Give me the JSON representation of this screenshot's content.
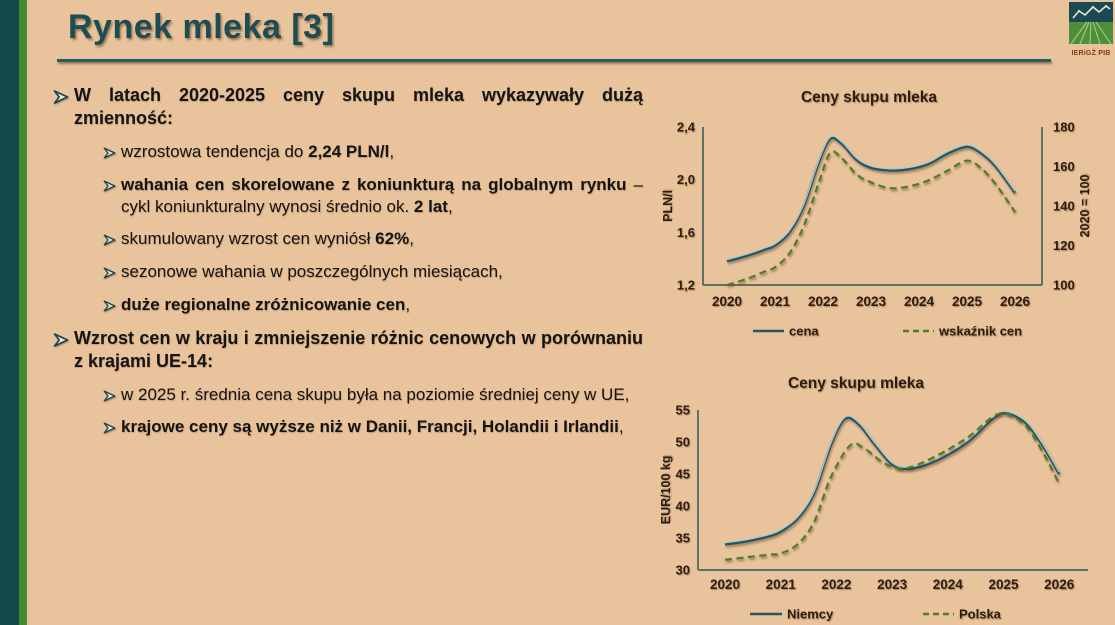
{
  "slide": {
    "title": "Rynek mleka [3]",
    "logo": {
      "caption": "IERiGŻ PIB"
    },
    "colors": {
      "background": "#e9c39b",
      "side_bar_dark": "#154a4d",
      "side_bar_green": "#3f8c35",
      "title": "#1b4d53",
      "text": "#141414",
      "line_solid": "#28565e",
      "line_solid_highlight": "#a6ccd6",
      "line_dashed": "#4f7c29",
      "axis": "#4b635a"
    }
  },
  "content": {
    "bullets": [
      {
        "level": 1,
        "segments": [
          {
            "text": "W latach 2020-2025 ceny skupu mleka wykazywały dużą zmienność:",
            "bold": true
          }
        ]
      },
      {
        "level": 2,
        "segments": [
          {
            "text": "wzrostowa tendencja do ",
            "bold": false
          },
          {
            "text": "2,24 PLN/l",
            "bold": true
          },
          {
            "text": ",",
            "bold": false
          }
        ]
      },
      {
        "level": 2,
        "segments": [
          {
            "text": "wahania cen skorelowane z koniunkturą na globalnym rynku",
            "bold": true
          },
          {
            "text": " – cykl koniunkturalny wynosi średnio ok. ",
            "bold": false
          },
          {
            "text": "2 lat",
            "bold": true
          },
          {
            "text": ",",
            "bold": false
          }
        ]
      },
      {
        "level": 2,
        "segments": [
          {
            "text": "skumulowany wzrost cen wyniósł ",
            "bold": false
          },
          {
            "text": "62%",
            "bold": true
          },
          {
            "text": ",",
            "bold": false
          }
        ]
      },
      {
        "level": 2,
        "segments": [
          {
            "text": "sezonowe wahania w poszczególnych miesiącach,",
            "bold": false
          }
        ]
      },
      {
        "level": 2,
        "segments": [
          {
            "text": "duże regionalne zróżnicowanie cen",
            "bold": true
          },
          {
            "text": ",",
            "bold": false
          }
        ]
      },
      {
        "level": 1,
        "segments": [
          {
            "text": "Wzrost cen w kraju i zmniejszenie różnic cenowych w porównaniu z krajami UE-14:",
            "bold": true
          }
        ]
      },
      {
        "level": 2,
        "segments": [
          {
            "text": "w 2025 r. średnia cena skupu była na poziomie średniej ceny w UE,",
            "bold": false
          }
        ]
      },
      {
        "level": 2,
        "segments": [
          {
            "text": "krajowe ceny są wyższe niż w Danii, Francji, Holandii i Irlandii",
            "bold": true
          },
          {
            "text": ",",
            "bold": false
          }
        ]
      }
    ]
  },
  "chart_data": [
    {
      "type": "line",
      "title": "Ceny skupu mleka",
      "x_tick_labels": [
        "2020",
        "2021",
        "2022",
        "2023",
        "2024",
        "2025",
        "2026"
      ],
      "legend_position": "bottom",
      "grid": false,
      "axes": {
        "left": {
          "label": "PLN/l",
          "min": 1.2,
          "max": 2.4,
          "tick_labels": [
            "2,4",
            "2,0",
            "1,6",
            "1,2"
          ]
        },
        "right": {
          "label": "2020 = 100",
          "min": 100,
          "max": 180,
          "tick_labels": [
            "180",
            "160",
            "140",
            "120",
            "100"
          ]
        }
      },
      "series": [
        {
          "name": "cena",
          "axis": "left",
          "line": "solid",
          "color": "#28565e",
          "yearly_values": [
            1.38,
            1.5,
            2.3,
            2.08,
            2.1,
            2.25,
            1.9
          ],
          "points": [
            [
              2020,
              1.38
            ],
            [
              2020.4,
              1.42
            ],
            [
              2020.8,
              1.47
            ],
            [
              2021,
              1.5
            ],
            [
              2021.3,
              1.6
            ],
            [
              2021.6,
              1.8
            ],
            [
              2021.9,
              2.12
            ],
            [
              2022.15,
              2.31
            ],
            [
              2022.4,
              2.27
            ],
            [
              2022.7,
              2.15
            ],
            [
              2023,
              2.09
            ],
            [
              2023.4,
              2.07
            ],
            [
              2023.8,
              2.08
            ],
            [
              2024.2,
              2.12
            ],
            [
              2024.6,
              2.2
            ],
            [
              2025,
              2.25
            ],
            [
              2025.3,
              2.2
            ],
            [
              2025.6,
              2.1
            ],
            [
              2026,
              1.9
            ]
          ]
        },
        {
          "name": "wskaźnik cen",
          "axis": "right",
          "line": "dashed",
          "color": "#4f7c29",
          "yearly_values": [
            100,
            109,
            166,
            152,
            151,
            163,
            137
          ],
          "points": [
            [
              2020,
              100
            ],
            [
              2020.4,
              103
            ],
            [
              2020.8,
              107
            ],
            [
              2021,
              109
            ],
            [
              2021.3,
              116
            ],
            [
              2021.6,
              130
            ],
            [
              2021.9,
              151
            ],
            [
              2022.15,
              167
            ],
            [
              2022.4,
              164
            ],
            [
              2022.7,
              156
            ],
            [
              2023,
              152
            ],
            [
              2023.4,
              149
            ],
            [
              2023.8,
              150
            ],
            [
              2024.2,
              153
            ],
            [
              2024.6,
              158
            ],
            [
              2025,
              163
            ],
            [
              2025.3,
              159
            ],
            [
              2025.6,
              151
            ],
            [
              2026,
              137
            ]
          ]
        }
      ]
    },
    {
      "type": "line",
      "title": "Ceny skupu mleka",
      "x_tick_labels": [
        "2020",
        "2021",
        "2022",
        "2023",
        "2024",
        "2025",
        "2026"
      ],
      "legend_position": "bottom",
      "grid": false,
      "axes": {
        "left": {
          "label": "EUR/100 kg",
          "min": 30,
          "max": 55,
          "tick_labels": [
            "55",
            "50",
            "45",
            "40",
            "35",
            "30"
          ]
        }
      },
      "series": [
        {
          "name": "Niemcy",
          "axis": "left",
          "line": "solid",
          "color": "#28565e",
          "yearly_values": [
            34,
            36,
            53,
            46,
            48,
            54.4,
            45
          ],
          "points": [
            [
              2020,
              34
            ],
            [
              2020.4,
              34.5
            ],
            [
              2020.8,
              35.3
            ],
            [
              2021,
              36
            ],
            [
              2021.3,
              38
            ],
            [
              2021.6,
              42
            ],
            [
              2021.9,
              49.5
            ],
            [
              2022.15,
              53.6
            ],
            [
              2022.4,
              52.8
            ],
            [
              2022.7,
              49.5
            ],
            [
              2023,
              46.5
            ],
            [
              2023.25,
              45.8
            ],
            [
              2023.6,
              46.4
            ],
            [
              2024,
              48
            ],
            [
              2024.4,
              50.3
            ],
            [
              2024.8,
              53.6
            ],
            [
              2025.05,
              54.5
            ],
            [
              2025.4,
              53
            ],
            [
              2025.7,
              49.5
            ],
            [
              2026,
              45
            ]
          ]
        },
        {
          "name": "Polska",
          "axis": "left",
          "line": "dashed",
          "color": "#4f7c29",
          "yearly_values": [
            31.6,
            32.6,
            48.5,
            46,
            48.8,
            54.4,
            43.5
          ],
          "points": [
            [
              2020,
              31.6
            ],
            [
              2020.4,
              32
            ],
            [
              2020.8,
              32.4
            ],
            [
              2021,
              32.6
            ],
            [
              2021.3,
              34
            ],
            [
              2021.6,
              37.5
            ],
            [
              2021.9,
              44.5
            ],
            [
              2022.25,
              49.5
            ],
            [
              2022.5,
              49
            ],
            [
              2022.8,
              47
            ],
            [
              2023.05,
              46
            ],
            [
              2023.3,
              46
            ],
            [
              2023.6,
              47
            ],
            [
              2024,
              48.8
            ],
            [
              2024.4,
              51
            ],
            [
              2024.8,
              53.9
            ],
            [
              2025.05,
              54.4
            ],
            [
              2025.4,
              52.5
            ],
            [
              2025.7,
              48.5
            ],
            [
              2026,
              43.5
            ]
          ]
        }
      ]
    }
  ]
}
